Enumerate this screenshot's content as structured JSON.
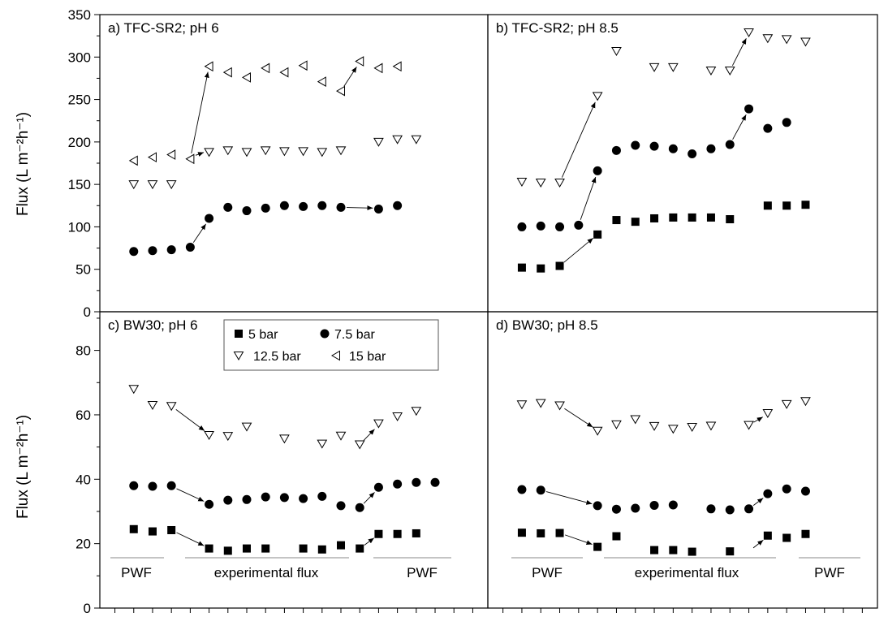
{
  "figure": {
    "ylabel_top": "Flux (L m⁻²h⁻¹)",
    "ylabel_bottom": "Flux (L m⁻²h⁻¹)"
  },
  "legend": {
    "location": "top-left of panel c",
    "entries": [
      {
        "label": "5 bar",
        "marker": "square"
      },
      {
        "label": "7.5 bar",
        "marker": "circle"
      },
      {
        "label": "12.5 bar",
        "marker": "triangle-down"
      },
      {
        "label": "15 bar",
        "marker": "triangle-left"
      }
    ]
  },
  "region_labels": {
    "pwf_left": "PWF",
    "experimental": "experimental flux",
    "pwf_right": "PWF"
  },
  "chart_data": [
    {
      "type": "scatter",
      "panel": "a",
      "title": "a) TFC-SR2; pH 6",
      "ylim": [
        0,
        350
      ],
      "yticks": [
        0,
        50,
        100,
        150,
        200,
        250,
        300,
        350
      ],
      "x_range": [
        -0.8,
        19.8
      ],
      "series": [
        {
          "name": "7.5 bar",
          "marker": "circle",
          "points": [
            [
              1,
              71
            ],
            [
              2,
              72
            ],
            [
              3,
              73
            ],
            [
              4,
              76
            ],
            [
              5,
              110
            ],
            [
              6,
              123
            ],
            [
              7,
              119
            ],
            [
              8,
              122
            ],
            [
              9,
              125
            ],
            [
              10,
              124
            ],
            [
              11,
              125
            ],
            [
              12,
              123
            ],
            [
              14,
              121
            ],
            [
              15,
              125
            ]
          ]
        },
        {
          "name": "12.5 bar",
          "marker": "triangle-down",
          "points": [
            [
              1,
              150
            ],
            [
              2,
              150
            ],
            [
              3,
              150
            ],
            [
              5,
              188
            ],
            [
              6,
              190
            ],
            [
              7,
              188
            ],
            [
              8,
              190
            ],
            [
              9,
              189
            ],
            [
              10,
              189
            ],
            [
              11,
              188
            ],
            [
              12,
              190
            ],
            [
              14,
              200
            ],
            [
              15,
              203
            ],
            [
              16,
              203
            ]
          ]
        },
        {
          "name": "15 bar",
          "marker": "triangle-left",
          "points": [
            [
              1,
              178
            ],
            [
              2,
              182
            ],
            [
              3,
              185
            ],
            [
              4,
              180
            ],
            [
              5,
              289
            ],
            [
              6,
              282
            ],
            [
              7,
              276
            ],
            [
              8,
              287
            ],
            [
              9,
              282
            ],
            [
              10,
              290
            ],
            [
              11,
              271
            ],
            [
              12,
              260
            ],
            [
              13,
              295
            ],
            [
              14,
              287
            ],
            [
              15,
              289
            ]
          ]
        }
      ],
      "arrows": [
        [
          [
            4,
            76
          ],
          [
            5,
            109
          ]
        ],
        [
          [
            12,
            123
          ],
          [
            14,
            122
          ]
        ],
        [
          [
            4,
            180
          ],
          [
            5,
            289
          ]
        ],
        [
          [
            4,
            182
          ],
          [
            5,
            190
          ]
        ],
        [
          [
            12,
            260
          ],
          [
            13,
            294
          ]
        ]
      ]
    },
    {
      "type": "scatter",
      "panel": "b",
      "title": "b) TFC-SR2; pH 8.5",
      "ylim": [
        0,
        350
      ],
      "yticks": [
        0,
        50,
        100,
        150,
        200,
        250,
        300,
        350
      ],
      "x_range": [
        -0.8,
        19.8
      ],
      "series": [
        {
          "name": "5 bar",
          "marker": "square",
          "points": [
            [
              1,
              52
            ],
            [
              2,
              51
            ],
            [
              3,
              54
            ],
            [
              5,
              91
            ],
            [
              6,
              108
            ],
            [
              7,
              106
            ],
            [
              8,
              110
            ],
            [
              9,
              111
            ],
            [
              10,
              111
            ],
            [
              11,
              111
            ],
            [
              12,
              109
            ],
            [
              14,
              125
            ],
            [
              15,
              125
            ],
            [
              16,
              126
            ]
          ]
        },
        {
          "name": "7.5 bar",
          "marker": "circle",
          "points": [
            [
              1,
              100
            ],
            [
              2,
              101
            ],
            [
              3,
              100
            ],
            [
              4,
              102
            ],
            [
              5,
              166
            ],
            [
              6,
              190
            ],
            [
              7,
              196
            ],
            [
              8,
              195
            ],
            [
              9,
              192
            ],
            [
              10,
              186
            ],
            [
              11,
              192
            ],
            [
              12,
              197
            ],
            [
              13,
              239
            ],
            [
              14,
              216
            ],
            [
              15,
              223
            ]
          ]
        },
        {
          "name": "12.5 bar",
          "marker": "triangle-down",
          "points": [
            [
              1,
              153
            ],
            [
              2,
              152
            ],
            [
              3,
              152
            ],
            [
              5,
              254
            ],
            [
              6,
              307
            ],
            [
              8,
              288
            ],
            [
              9,
              288
            ],
            [
              11,
              284
            ],
            [
              12,
              284
            ],
            [
              13,
              329
            ],
            [
              14,
              322
            ],
            [
              15,
              321
            ],
            [
              16,
              318
            ]
          ]
        }
      ],
      "arrows": [
        [
          [
            3,
            54
          ],
          [
            5,
            91
          ]
        ],
        [
          [
            4,
            102
          ],
          [
            5,
            165
          ]
        ],
        [
          [
            12,
            197
          ],
          [
            13,
            238
          ]
        ],
        [
          [
            3,
            152
          ],
          [
            5,
            253
          ]
        ],
        [
          [
            12,
            284
          ],
          [
            13,
            328
          ]
        ]
      ]
    },
    {
      "type": "scatter",
      "panel": "c",
      "title": "c) BW30; pH 6",
      "ylim": [
        0,
        92
      ],
      "yticks": [
        0,
        20,
        40,
        60,
        80
      ],
      "x_range": [
        -0.8,
        19.8
      ],
      "series": [
        {
          "name": "5 bar",
          "marker": "square",
          "points": [
            [
              1,
              24.5
            ],
            [
              2,
              23.8
            ],
            [
              3,
              24.2
            ],
            [
              5,
              18.5
            ],
            [
              6,
              17.8
            ],
            [
              7,
              18.5
            ],
            [
              8,
              18.5
            ],
            [
              10,
              18.5
            ],
            [
              11,
              18.2
            ],
            [
              12,
              19.5
            ],
            [
              13,
              18.5
            ],
            [
              14,
              23
            ],
            [
              15,
              23
            ],
            [
              16,
              23.2
            ]
          ]
        },
        {
          "name": "7.5 bar",
          "marker": "circle",
          "points": [
            [
              1,
              38
            ],
            [
              2,
              37.8
            ],
            [
              3,
              38
            ],
            [
              5,
              32.2
            ],
            [
              6,
              33.5
            ],
            [
              7,
              33.7
            ],
            [
              8,
              34.5
            ],
            [
              9,
              34.3
            ],
            [
              10,
              34
            ],
            [
              11,
              34.7
            ],
            [
              12,
              31.8
            ],
            [
              13,
              31.2
            ],
            [
              14,
              37.5
            ],
            [
              15,
              38.5
            ],
            [
              16,
              39
            ],
            [
              17,
              39
            ]
          ]
        },
        {
          "name": "12.5 bar",
          "marker": "triangle-down",
          "points": [
            [
              1,
              68
            ],
            [
              2,
              63
            ],
            [
              3,
              62.7
            ],
            [
              5,
              53.7
            ],
            [
              6,
              53.4
            ],
            [
              7,
              56.3
            ],
            [
              9,
              52.6
            ],
            [
              11,
              51
            ],
            [
              12,
              53.5
            ],
            [
              13,
              50.8
            ],
            [
              14,
              57.3
            ],
            [
              15,
              59.5
            ],
            [
              16,
              61.2
            ]
          ]
        }
      ],
      "arrows": [
        [
          [
            3,
            24.2
          ],
          [
            5,
            18.6
          ]
        ],
        [
          [
            13,
            18.5
          ],
          [
            14,
            22.8
          ]
        ],
        [
          [
            3,
            37.8
          ],
          [
            5,
            32.4
          ]
        ],
        [
          [
            13,
            31.2
          ],
          [
            14,
            37.2
          ]
        ],
        [
          [
            3,
            62.7
          ],
          [
            5,
            54
          ]
        ],
        [
          [
            13,
            50.8
          ],
          [
            14,
            56.8
          ]
        ]
      ]
    },
    {
      "type": "scatter",
      "panel": "d",
      "title": "d) BW30; pH 8.5",
      "ylim": [
        0,
        92
      ],
      "yticks": [
        0,
        20,
        40,
        60,
        80
      ],
      "x_range": [
        -0.8,
        19.8
      ],
      "series": [
        {
          "name": "5 bar",
          "marker": "square",
          "points": [
            [
              1,
              23.4
            ],
            [
              2,
              23.2
            ],
            [
              3,
              23.3
            ],
            [
              5,
              19
            ],
            [
              6,
              22.3
            ],
            [
              8,
              18
            ],
            [
              9,
              18
            ],
            [
              10,
              17.5
            ],
            [
              12,
              17.6
            ],
            [
              14,
              22.5
            ],
            [
              15,
              21.8
            ],
            [
              16,
              23
            ]
          ]
        },
        {
          "name": "7.5 bar",
          "marker": "circle",
          "points": [
            [
              1,
              36.8
            ],
            [
              2,
              36.6
            ],
            [
              5,
              31.8
            ],
            [
              6,
              30.7
            ],
            [
              7,
              31
            ],
            [
              8,
              31.9
            ],
            [
              9,
              32
            ],
            [
              11,
              30.8
            ],
            [
              12,
              30.5
            ],
            [
              13,
              30.8
            ],
            [
              14,
              35.5
            ],
            [
              15,
              37
            ],
            [
              16,
              36.3
            ]
          ]
        },
        {
          "name": "12.5 bar",
          "marker": "triangle-down",
          "points": [
            [
              1,
              63.2
            ],
            [
              2,
              63.6
            ],
            [
              3,
              62.9
            ],
            [
              5,
              55
            ],
            [
              6,
              57
            ],
            [
              7,
              58.6
            ],
            [
              8,
              56.5
            ],
            [
              9,
              55.6
            ],
            [
              10,
              56.2
            ],
            [
              11,
              56.6
            ],
            [
              13,
              56.8
            ],
            [
              14,
              60.5
            ],
            [
              15,
              63.3
            ],
            [
              16,
              64.2
            ]
          ]
        }
      ],
      "arrows": [
        [
          [
            3,
            23.3
          ],
          [
            5,
            19.2
          ]
        ],
        [
          [
            13,
            17.6
          ],
          [
            14,
            22.2
          ]
        ],
        [
          [
            2,
            36.6
          ],
          [
            5,
            31.9
          ]
        ],
        [
          [
            13,
            30.8
          ],
          [
            14,
            35.2
          ]
        ],
        [
          [
            3,
            62.9
          ],
          [
            5,
            55.2
          ]
        ],
        [
          [
            13,
            56.8
          ],
          [
            14,
            60.2
          ]
        ]
      ]
    }
  ]
}
